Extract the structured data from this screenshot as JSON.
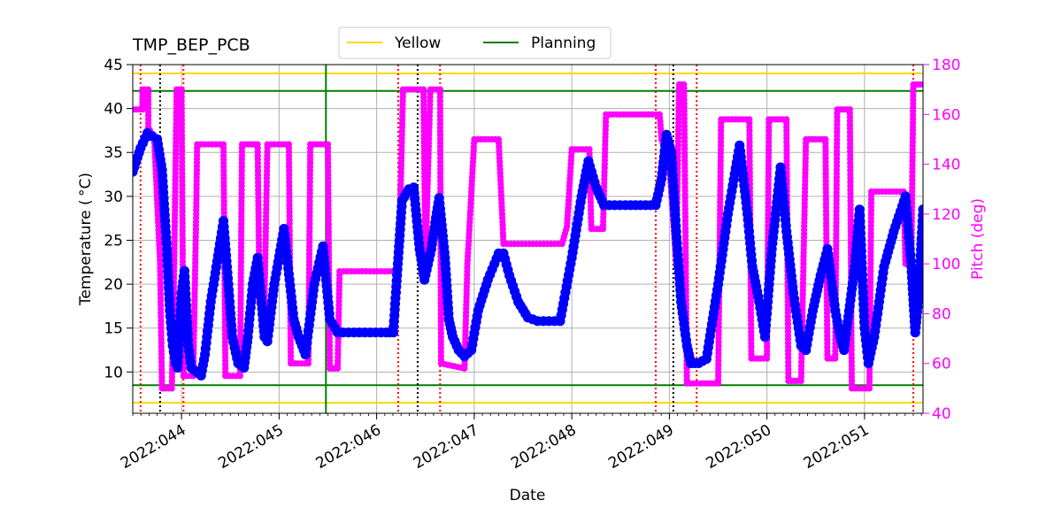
{
  "chart_data": {
    "type": "line",
    "title": "TMP_BEP_PCB",
    "xlabel": "Date",
    "ylabel_left": "Temperature ($^\\circ$C)",
    "ylabel_left_display": "Temperature ( °C)",
    "ylabel_right": "Pitch (deg)",
    "x_range_days": [
      43.5,
      51.6
    ],
    "x_ticks": [
      {
        "day": 44,
        "label": "2022:044"
      },
      {
        "day": 45,
        "label": "2022:045"
      },
      {
        "day": 46,
        "label": "2022:046"
      },
      {
        "day": 47,
        "label": "2022:047"
      },
      {
        "day": 48,
        "label": "2022:048"
      },
      {
        "day": 49,
        "label": "2022:049"
      },
      {
        "day": 50,
        "label": "2022:050"
      },
      {
        "day": 51,
        "label": "2022:051"
      }
    ],
    "ylim_left": [
      5.3,
      45
    ],
    "y_ticks_left": [
      10,
      15,
      20,
      25,
      30,
      35,
      40,
      45
    ],
    "ylim_right": [
      40,
      180
    ],
    "y_ticks_right": [
      40,
      60,
      80,
      100,
      120,
      140,
      160,
      180
    ],
    "grid": true,
    "legend": {
      "placement": "top-center",
      "entries": [
        {
          "label": "Yellow",
          "color": "#ffd700"
        },
        {
          "label": "Planning",
          "color": "#008000"
        }
      ]
    },
    "limit_lines": [
      {
        "name": "Yellow",
        "values": [
          6.5,
          44.0
        ],
        "color": "#ffd700"
      },
      {
        "name": "Planning",
        "values": [
          8.5,
          42.0
        ],
        "color": "#008000"
      }
    ],
    "vertical_lines": [
      {
        "day": 43.58,
        "color": "#ff0000",
        "style": "dotted"
      },
      {
        "day": 43.78,
        "color": "#000000",
        "style": "dotted"
      },
      {
        "day": 44.02,
        "color": "#ff0000",
        "style": "dotted"
      },
      {
        "day": 45.48,
        "color": "#008000",
        "style": "solid"
      },
      {
        "day": 46.22,
        "color": "#ff0000",
        "style": "dotted"
      },
      {
        "day": 46.42,
        "color": "#000000",
        "style": "dotted"
      },
      {
        "day": 46.65,
        "color": "#ff0000",
        "style": "dotted"
      },
      {
        "day": 48.86,
        "color": "#ff0000",
        "style": "dotted"
      },
      {
        "day": 49.04,
        "color": "#000000",
        "style": "dotted"
      },
      {
        "day": 49.28,
        "color": "#ff0000",
        "style": "dotted"
      },
      {
        "day": 51.5,
        "color": "#ff0000",
        "style": "dotted"
      }
    ],
    "series": [
      {
        "name": "TMP_BEP_PCB",
        "axis": "left",
        "color": "#0000ff",
        "points": [
          [
            43.5,
            32.8
          ],
          [
            43.58,
            35.5
          ],
          [
            43.65,
            37.2
          ],
          [
            43.75,
            36.5
          ],
          [
            43.8,
            33
          ],
          [
            43.85,
            24
          ],
          [
            43.88,
            17
          ],
          [
            43.91,
            13
          ],
          [
            43.94,
            11
          ],
          [
            43.96,
            10.5
          ],
          [
            44.0,
            19
          ],
          [
            44.03,
            21.5
          ],
          [
            44.07,
            13
          ],
          [
            44.1,
            10.5
          ],
          [
            44.2,
            9.6
          ],
          [
            44.24,
            12
          ],
          [
            44.3,
            18
          ],
          [
            44.43,
            27.2
          ],
          [
            44.48,
            20
          ],
          [
            44.52,
            14
          ],
          [
            44.58,
            11
          ],
          [
            44.64,
            10.5
          ],
          [
            44.68,
            14
          ],
          [
            44.73,
            20
          ],
          [
            44.78,
            23
          ],
          [
            44.85,
            14
          ],
          [
            44.88,
            13.5
          ],
          [
            44.95,
            20
          ],
          [
            45.05,
            26.3
          ],
          [
            45.15,
            16
          ],
          [
            45.2,
            14
          ],
          [
            45.27,
            12
          ],
          [
            45.36,
            20
          ],
          [
            45.45,
            24.3
          ],
          [
            45.52,
            16
          ],
          [
            45.6,
            14.5
          ],
          [
            46.1,
            14.5
          ],
          [
            46.17,
            14.5
          ],
          [
            46.26,
            29.5
          ],
          [
            46.33,
            30.8
          ],
          [
            46.38,
            31
          ],
          [
            46.44,
            24
          ],
          [
            46.49,
            20.5
          ],
          [
            46.56,
            24
          ],
          [
            46.6,
            27
          ],
          [
            46.64,
            29.8
          ],
          [
            46.7,
            23
          ],
          [
            46.74,
            16
          ],
          [
            46.78,
            14
          ],
          [
            46.84,
            12.5
          ],
          [
            46.9,
            11.8
          ],
          [
            46.97,
            12.5
          ],
          [
            47.04,
            17
          ],
          [
            47.14,
            20.5
          ],
          [
            47.25,
            23.5
          ],
          [
            47.3,
            23.5
          ],
          [
            47.36,
            21
          ],
          [
            47.45,
            18
          ],
          [
            47.55,
            16.2
          ],
          [
            47.65,
            15.8
          ],
          [
            47.88,
            15.8
          ],
          [
            48.0,
            23
          ],
          [
            48.1,
            30
          ],
          [
            48.17,
            34
          ],
          [
            48.25,
            31
          ],
          [
            48.33,
            29
          ],
          [
            48.55,
            29
          ],
          [
            48.86,
            29
          ],
          [
            48.92,
            32
          ],
          [
            48.97,
            37
          ],
          [
            49.02,
            35
          ],
          [
            49.07,
            26
          ],
          [
            49.12,
            18
          ],
          [
            49.18,
            13
          ],
          [
            49.22,
            11
          ],
          [
            49.3,
            11
          ],
          [
            49.38,
            11.5
          ],
          [
            49.5,
            20
          ],
          [
            49.6,
            28
          ],
          [
            49.72,
            35.8
          ],
          [
            49.8,
            28
          ],
          [
            49.85,
            22
          ],
          [
            49.92,
            18
          ],
          [
            49.98,
            14
          ],
          [
            50.05,
            24
          ],
          [
            50.14,
            33.3
          ],
          [
            50.2,
            26
          ],
          [
            50.27,
            19
          ],
          [
            50.35,
            13
          ],
          [
            50.4,
            12.5
          ],
          [
            50.47,
            17
          ],
          [
            50.55,
            21
          ],
          [
            50.62,
            24
          ],
          [
            50.7,
            17
          ],
          [
            50.75,
            14
          ],
          [
            50.79,
            12.5
          ],
          [
            50.9,
            22
          ],
          [
            50.95,
            28.5
          ],
          [
            51.0,
            15
          ],
          [
            51.04,
            11
          ],
          [
            51.1,
            14
          ],
          [
            51.2,
            22
          ],
          [
            51.3,
            26
          ],
          [
            51.42,
            30
          ],
          [
            51.48,
            22
          ],
          [
            51.52,
            14.5
          ],
          [
            51.55,
            18
          ],
          [
            51.6,
            28.5
          ]
        ]
      },
      {
        "name": "Pitch",
        "axis": "right",
        "color": "#ff00ff",
        "points": [
          [
            43.5,
            162
          ],
          [
            43.6,
            162
          ],
          [
            43.6,
            170
          ],
          [
            43.66,
            170
          ],
          [
            43.66,
            155
          ],
          [
            43.72,
            150
          ],
          [
            43.78,
            100
          ],
          [
            43.8,
            50
          ],
          [
            43.9,
            50
          ],
          [
            43.92,
            88
          ],
          [
            43.95,
            170
          ],
          [
            44.0,
            170
          ],
          [
            44.02,
            55
          ],
          [
            44.12,
            55
          ],
          [
            44.15,
            120
          ],
          [
            44.16,
            148
          ],
          [
            44.43,
            148
          ],
          [
            44.45,
            55
          ],
          [
            44.6,
            55
          ],
          [
            44.62,
            148
          ],
          [
            44.78,
            148
          ],
          [
            44.8,
            84
          ],
          [
            44.85,
            84
          ],
          [
            44.88,
            148
          ],
          [
            45.1,
            148
          ],
          [
            45.12,
            60
          ],
          [
            45.3,
            60
          ],
          [
            45.32,
            148
          ],
          [
            45.5,
            148
          ],
          [
            45.52,
            58
          ],
          [
            45.6,
            58
          ],
          [
            45.62,
            97
          ],
          [
            46.2,
            97
          ],
          [
            46.24,
            120
          ],
          [
            46.27,
            170
          ],
          [
            46.48,
            170
          ],
          [
            46.5,
            100
          ],
          [
            46.55,
            170
          ],
          [
            46.65,
            170
          ],
          [
            46.66,
            60
          ],
          [
            46.9,
            58
          ],
          [
            46.93,
            100
          ],
          [
            47.0,
            150
          ],
          [
            47.25,
            150
          ],
          [
            47.3,
            108
          ],
          [
            47.9,
            108
          ],
          [
            47.95,
            115
          ],
          [
            48.0,
            146
          ],
          [
            48.18,
            146
          ],
          [
            48.2,
            114
          ],
          [
            48.32,
            114
          ],
          [
            48.35,
            160
          ],
          [
            48.9,
            160
          ],
          [
            48.92,
            150
          ],
          [
            49.0,
            140
          ],
          [
            49.07,
            100
          ],
          [
            49.1,
            172
          ],
          [
            49.15,
            172
          ],
          [
            49.18,
            52
          ],
          [
            49.5,
            52
          ],
          [
            49.53,
            158
          ],
          [
            49.82,
            158
          ],
          [
            49.84,
            62
          ],
          [
            50.0,
            62
          ],
          [
            50.02,
            158
          ],
          [
            50.2,
            158
          ],
          [
            50.22,
            53
          ],
          [
            50.35,
            53
          ],
          [
            50.4,
            150
          ],
          [
            50.6,
            150
          ],
          [
            50.62,
            62
          ],
          [
            50.7,
            62
          ],
          [
            50.72,
            162
          ],
          [
            50.85,
            162
          ],
          [
            50.87,
            50
          ],
          [
            51.05,
            50
          ],
          [
            51.07,
            129
          ],
          [
            51.4,
            129
          ],
          [
            51.42,
            100
          ],
          [
            51.48,
            100
          ],
          [
            51.5,
            172
          ],
          [
            51.6,
            172
          ]
        ]
      }
    ]
  }
}
